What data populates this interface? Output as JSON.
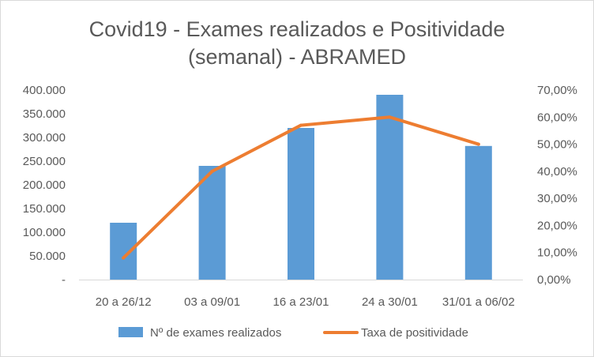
{
  "chart_data": {
    "type": "bar",
    "title_lines": [
      "Covid19 - Exames realizados e Positividade",
      "(semanal) - ABRAMED"
    ],
    "categories": [
      "20 a 26/12",
      "03 a 09/01",
      "16 a 23/01",
      "24 a 30/01",
      "31/01 a 06/02"
    ],
    "series": [
      {
        "name": "Nº de exames realizados",
        "type": "bar",
        "axis": "left",
        "color": "#5B9BD5",
        "values": [
          120000,
          240000,
          320000,
          390000,
          282000
        ]
      },
      {
        "name": "Taxa de positividade",
        "type": "line",
        "axis": "right",
        "color": "#ED7D31",
        "values": [
          0.08,
          0.4,
          0.57,
          0.6,
          0.5
        ]
      }
    ],
    "y_left": {
      "ylim": [
        0,
        400000
      ],
      "tick_values": [
        0,
        50000,
        100000,
        150000,
        200000,
        250000,
        300000,
        350000,
        400000
      ],
      "tick_labels": [
        "-",
        "50.000",
        "100.000",
        "150.000",
        "200.000",
        "250.000",
        "300.000",
        "350.000",
        "400.000"
      ]
    },
    "y_right": {
      "ylim": [
        0,
        0.7
      ],
      "tick_values": [
        0,
        0.1,
        0.2,
        0.3,
        0.4,
        0.5,
        0.6,
        0.7
      ],
      "tick_labels": [
        "0,00%",
        "10,00%",
        "20,00%",
        "30,00%",
        "40,00%",
        "50,00%",
        "60,00%",
        "70,00%"
      ]
    },
    "grid": false,
    "legend_position": "bottom"
  }
}
